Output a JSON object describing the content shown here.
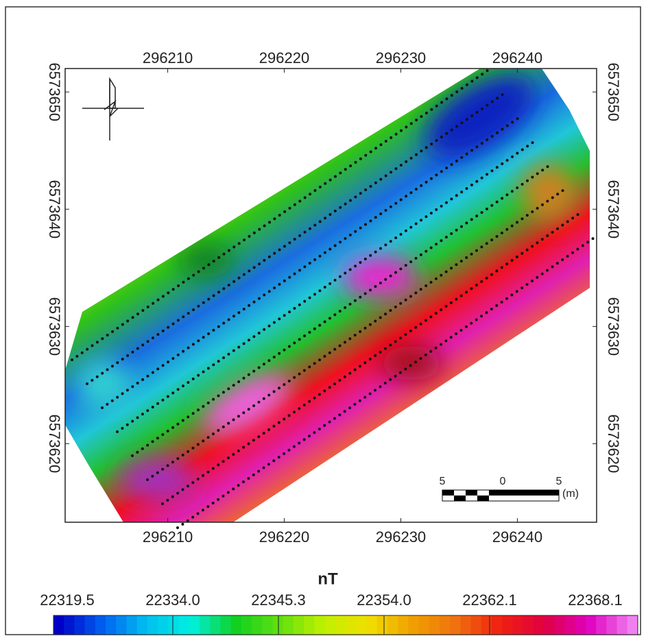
{
  "map": {
    "xlim": [
      296201.2,
      296246.8
    ],
    "ylim": [
      6573613.3,
      6573652.0
    ],
    "x_ticks": [
      296210,
      296220,
      296230,
      296240
    ],
    "y_ticks": [
      6573620,
      6573630,
      6573640,
      6573650
    ],
    "colorbar": {
      "title": "nT",
      "ticks": [
        {
          "value": 22319.5,
          "label": "22319.5"
        },
        {
          "value": 22334,
          "label": "22334.0"
        },
        {
          "value": 22345.3,
          "label": "22345.3"
        },
        {
          "value": 22354,
          "label": "22354.0"
        },
        {
          "value": 22362.1,
          "label": "22362.1"
        },
        {
          "value": 22368.1,
          "label": "22368.1"
        }
      ]
    },
    "scale_bar": {
      "labels": [
        "5",
        "0",
        "5"
      ],
      "unit": "(m)"
    }
  }
}
